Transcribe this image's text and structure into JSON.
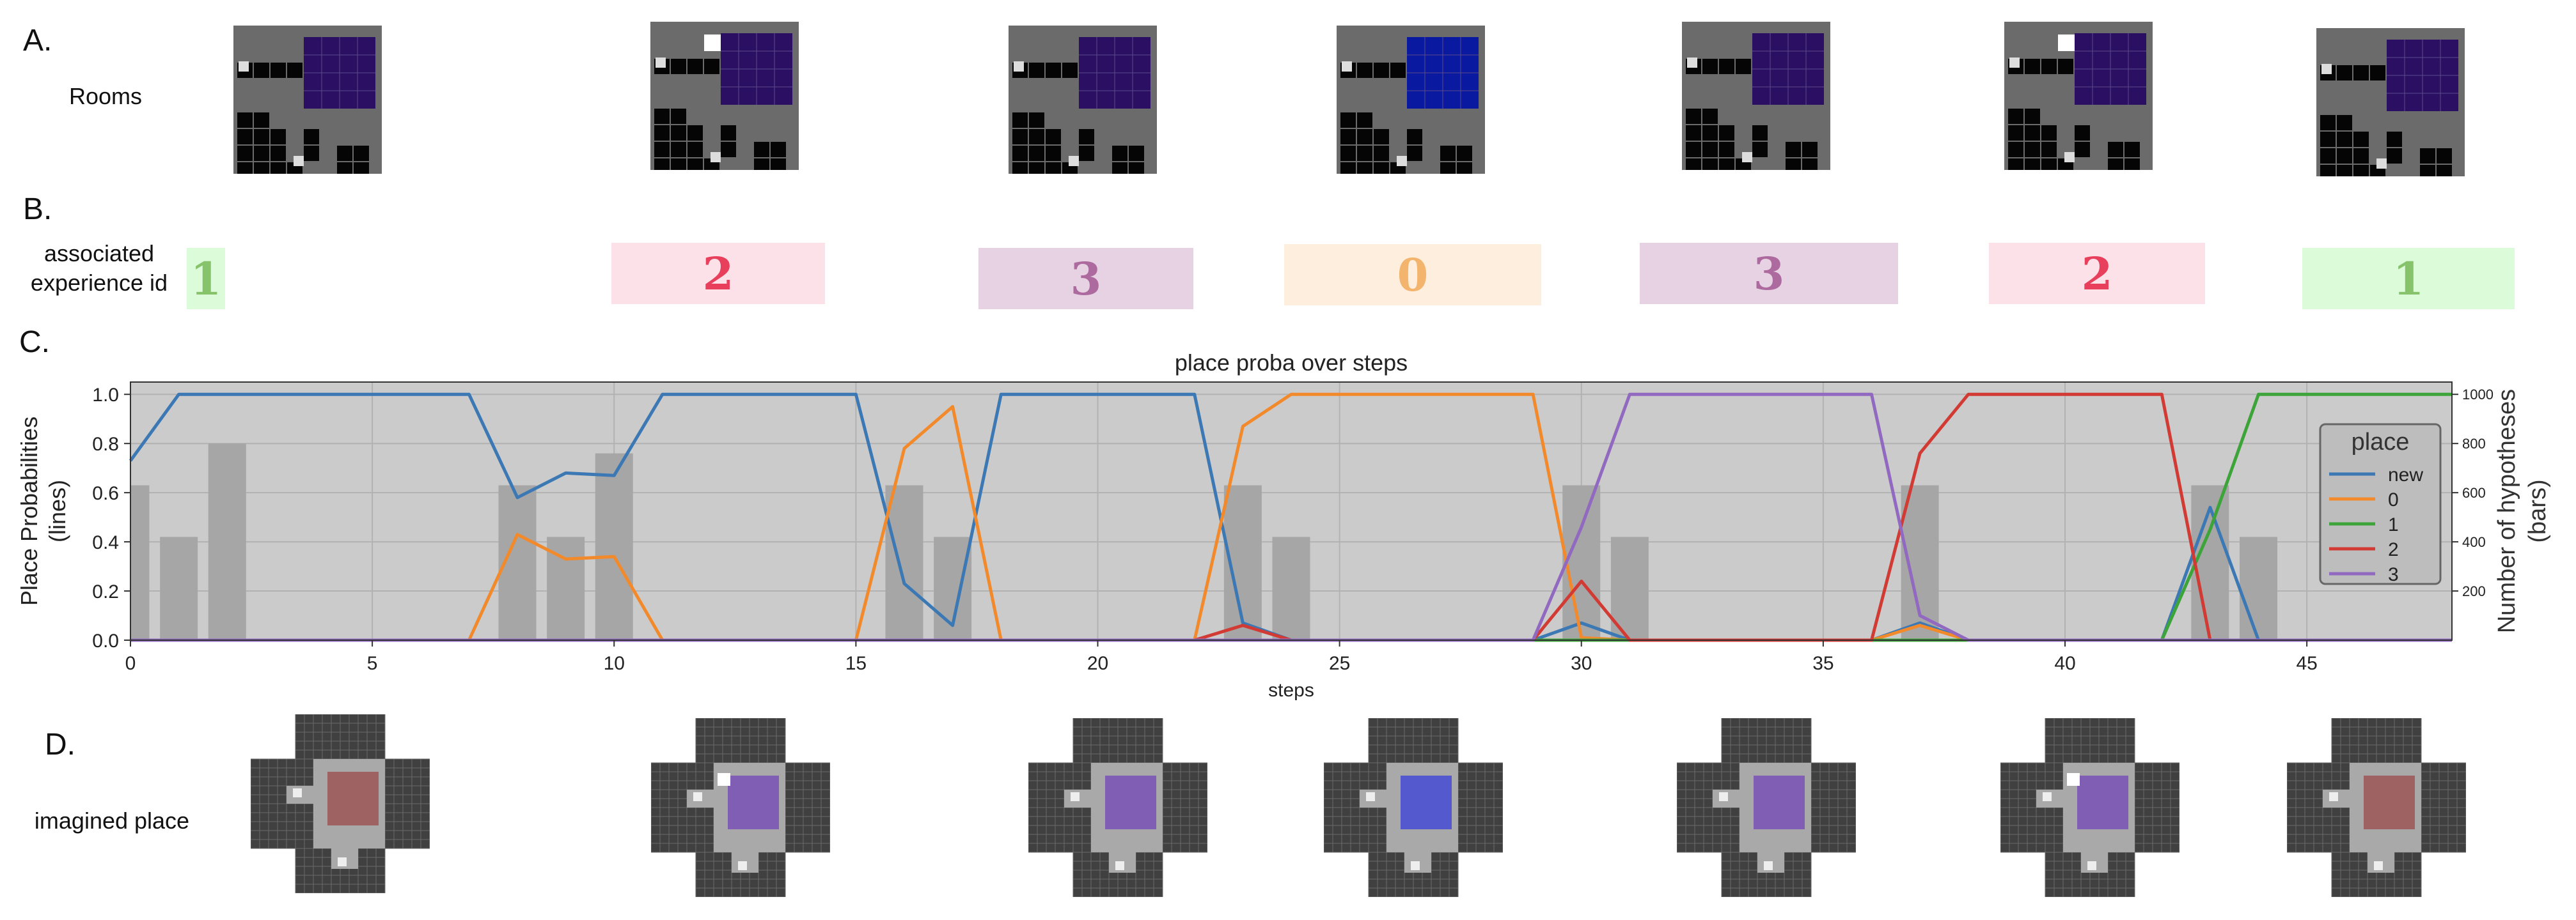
{
  "labels": {
    "a": "A.",
    "b": "B.",
    "c": "C.",
    "d": "D.",
    "rooms": "Rooms",
    "exp_line1": "associated",
    "exp_line2": "experience id",
    "imagined": "imagined place"
  },
  "rooms": [
    {
      "highlight": "#2b0f63",
      "white_cell": false
    },
    {
      "highlight": "#2b0f63",
      "white_cell": true
    },
    {
      "highlight": "#2b0f63",
      "white_cell": false
    },
    {
      "highlight": "#0a1aa0",
      "white_cell": false
    },
    {
      "highlight": "#2b0f63",
      "white_cell": false
    },
    {
      "highlight": "#2b0f63",
      "white_cell": true
    },
    {
      "highlight": "#2b0f63",
      "white_cell": false
    }
  ],
  "experience_ids": [
    {
      "id": "1",
      "text_color": "#86c36a",
      "bg_color": "#dcfbd9"
    },
    {
      "id": "2",
      "text_color": "#e8405c",
      "bg_color": "#fde1e8"
    },
    {
      "id": "3",
      "text_color": "#ad6a9e",
      "bg_color": "#e6d2e3"
    },
    {
      "id": "0",
      "text_color": "#f3b56e",
      "bg_color": "#feeedd"
    },
    {
      "id": "3",
      "text_color": "#ad6a9e",
      "bg_color": "#e6d2e3"
    },
    {
      "id": "2",
      "text_color": "#e8405c",
      "bg_color": "#fde1e8"
    },
    {
      "id": "1",
      "text_color": "#86c36a",
      "bg_color": "#dcfbd9"
    }
  ],
  "imagined_places": [
    {
      "tint": "#9c5a5a",
      "white_cell": false
    },
    {
      "tint": "#7a55b5",
      "white_cell": true
    },
    {
      "tint": "#7a55b5",
      "white_cell": false
    },
    {
      "tint": "#4a50d0",
      "white_cell": false
    },
    {
      "tint": "#7a55b5",
      "white_cell": false
    },
    {
      "tint": "#7a55b5",
      "white_cell": true
    },
    {
      "tint": "#9c5a5a",
      "white_cell": false
    }
  ],
  "chart_data": {
    "type": "line",
    "title": "place proba over steps",
    "xlabel": "steps",
    "ylabel": "Place Probabilities\n(lines)",
    "y2label": "Number of hypotheses\n(bars)",
    "xlim": [
      0,
      48
    ],
    "ylim": [
      0,
      1.05
    ],
    "y2lim": [
      0,
      1050
    ],
    "x_ticks": [
      0,
      5,
      10,
      15,
      20,
      25,
      30,
      35,
      40,
      45
    ],
    "y_ticks": [
      "0.0",
      "0.2",
      "0.4",
      "0.6",
      "0.8",
      "1.0"
    ],
    "y_tick_values": [
      0,
      0.2,
      0.4,
      0.6,
      0.8,
      1.0
    ],
    "y2_ticks": [
      "200",
      "400",
      "600",
      "800",
      "1000"
    ],
    "y2_tick_values": [
      200,
      400,
      600,
      800,
      1000
    ],
    "grid": true,
    "background": "#cbcbcb",
    "legend": {
      "title": "place",
      "placement": "right"
    },
    "x": [
      0,
      1,
      2,
      3,
      4,
      5,
      6,
      7,
      8,
      9,
      10,
      11,
      12,
      13,
      14,
      15,
      16,
      17,
      18,
      19,
      20,
      21,
      22,
      23,
      24,
      25,
      26,
      27,
      28,
      29,
      30,
      31,
      32,
      33,
      34,
      35,
      36,
      37,
      38,
      39,
      40,
      41,
      42,
      43,
      44,
      45,
      46,
      47,
      48
    ],
    "series": [
      {
        "name": "new",
        "color": "#3b78b4",
        "values": [
          0.73,
          1,
          1,
          1,
          1,
          1,
          1,
          1,
          0.58,
          0.68,
          0.67,
          1,
          1,
          1,
          1,
          1,
          0.23,
          0.06,
          1,
          1,
          1,
          1,
          1,
          0.07,
          0,
          0,
          0,
          0,
          0,
          0,
          0.07,
          0,
          0,
          0,
          0,
          0,
          0,
          0.07,
          0,
          0,
          0,
          0,
          0,
          0.54,
          0,
          0,
          0,
          0,
          0
        ]
      },
      {
        "name": "0",
        "color": "#f28a2c",
        "values": [
          0,
          0,
          0,
          0,
          0,
          0,
          0,
          0,
          0.43,
          0.33,
          0.34,
          0,
          0,
          0,
          0,
          0,
          0.78,
          0.95,
          0,
          0,
          0,
          0,
          0,
          0.87,
          1,
          1,
          1,
          1,
          1,
          1,
          0.01,
          0,
          0,
          0,
          0,
          0,
          0,
          0.06,
          0,
          0,
          0,
          0,
          0,
          0,
          0,
          0,
          0,
          0,
          0
        ]
      },
      {
        "name": "1",
        "color": "#3da43a",
        "values": [
          0,
          0,
          0,
          0,
          0,
          0,
          0,
          0,
          0,
          0,
          0,
          0,
          0,
          0,
          0,
          0,
          0,
          0,
          0,
          0,
          0,
          0,
          0,
          0,
          0,
          0,
          0,
          0,
          0,
          0,
          0,
          0,
          0,
          0,
          0,
          0,
          0,
          0,
          0,
          0,
          0,
          0,
          0,
          0.45,
          1,
          1,
          1,
          1,
          1
        ]
      },
      {
        "name": "2",
        "color": "#d23a34",
        "values": [
          0,
          0,
          0,
          0,
          0,
          0,
          0,
          0,
          0,
          0,
          0,
          0,
          0,
          0,
          0,
          0,
          0,
          0,
          0,
          0,
          0,
          0,
          0,
          0.06,
          0,
          0,
          0,
          0,
          0,
          0,
          0.24,
          0,
          0,
          0,
          0,
          0,
          0,
          0.76,
          1,
          1,
          1,
          1,
          1,
          0,
          0,
          0,
          0,
          0,
          0
        ]
      },
      {
        "name": "3",
        "color": "#9169c1",
        "values": [
          0,
          0,
          0,
          0,
          0,
          0,
          0,
          0,
          0,
          0,
          0,
          0,
          0,
          0,
          0,
          0,
          0,
          0,
          0,
          0,
          0,
          0,
          0,
          0,
          0,
          0,
          0,
          0,
          0,
          0,
          0.46,
          1,
          1,
          1,
          1,
          1,
          1,
          0.1,
          0,
          0,
          0,
          0,
          0,
          0,
          0,
          0,
          0,
          0,
          0
        ]
      }
    ],
    "bars": {
      "name": "Number of hypotheses",
      "color": "#a6a6a6",
      "x": [
        0,
        1,
        2,
        8,
        9,
        10,
        16,
        17,
        23,
        24,
        30,
        31,
        37,
        43,
        44
      ],
      "values": [
        630,
        420,
        800,
        630,
        420,
        760,
        630,
        420,
        630,
        420,
        630,
        420,
        630,
        630,
        420
      ]
    }
  }
}
